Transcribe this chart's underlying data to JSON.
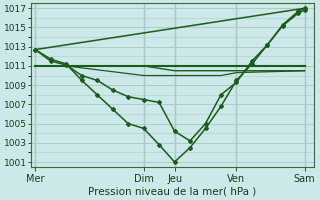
{
  "title": "Pression niveau de la mer( hPa )",
  "background_color": "#cce8e8",
  "grid_color": "#aacccc",
  "line_color": "#1a5c1a",
  "vline_color": "#2a5a2a",
  "ylim": [
    1000.5,
    1017.5
  ],
  "yticks": [
    1001,
    1003,
    1005,
    1007,
    1009,
    1011,
    1013,
    1015,
    1017
  ],
  "xlim": [
    -0.15,
    9.0
  ],
  "x_day_labels": [
    "Mer",
    "Dim",
    "Jeu",
    "Ven",
    "Sam"
  ],
  "x_day_positions": [
    0.0,
    3.5,
    4.5,
    6.5,
    8.7
  ],
  "x_vlines": [
    0.0,
    3.5,
    4.5,
    6.5,
    8.7
  ],
  "line1_x": [
    0,
    0.5,
    1.0,
    1.5,
    2.0,
    2.5,
    3.0,
    3.5,
    4.0,
    4.5,
    5.0,
    5.5,
    6.0,
    6.5,
    7.0,
    7.5,
    8.0,
    8.5,
    8.7
  ],
  "line1_y": [
    1012.7,
    1011.5,
    1011.1,
    1010.0,
    1009.5,
    1008.5,
    1007.8,
    1007.5,
    1007.2,
    1004.2,
    1003.2,
    1005.0,
    1008.0,
    1009.3,
    1011.5,
    1013.2,
    1015.2,
    1016.5,
    1016.8
  ],
  "line2_x": [
    0,
    0.5,
    1.0,
    1.5,
    2.0,
    2.5,
    3.0,
    3.5,
    4.0,
    4.5,
    5.0,
    5.5,
    6.0,
    6.5,
    7.0,
    7.5,
    8.0,
    8.5,
    8.7
  ],
  "line2_y": [
    1012.7,
    1011.7,
    1011.2,
    1009.5,
    1008.0,
    1006.5,
    1005.0,
    1004.5,
    1002.8,
    1001.0,
    1002.5,
    1004.5,
    1006.8,
    1009.5,
    1011.2,
    1013.2,
    1015.3,
    1016.7,
    1017.0
  ],
  "flat_line_x": [
    0,
    0.5,
    1.0,
    1.5,
    2.0,
    2.5,
    3.0,
    3.5,
    4.0,
    4.5,
    5.0,
    5.5,
    6.0,
    6.5,
    8.7
  ],
  "flat_line_y": [
    1011.0,
    1011.0,
    1011.0,
    1010.8,
    1010.6,
    1010.4,
    1010.2,
    1010.0,
    1010.0,
    1010.0,
    1010.0,
    1010.0,
    1010.0,
    1010.3,
    1010.5
  ],
  "flat_line2_x": [
    0,
    1.0,
    3.5,
    4.5,
    6.5,
    8.7
  ],
  "flat_line2_y": [
    1011.0,
    1011.0,
    1011.0,
    1011.0,
    1011.0,
    1011.0
  ],
  "flat_line3_x": [
    1.0,
    3.5,
    4.5,
    6.5,
    8.7
  ],
  "flat_line3_y": [
    1011.0,
    1011.0,
    1010.5,
    1010.5,
    1010.5
  ],
  "upper_line_x": [
    0,
    8.7
  ],
  "upper_line_y": [
    1012.7,
    1017.0
  ]
}
